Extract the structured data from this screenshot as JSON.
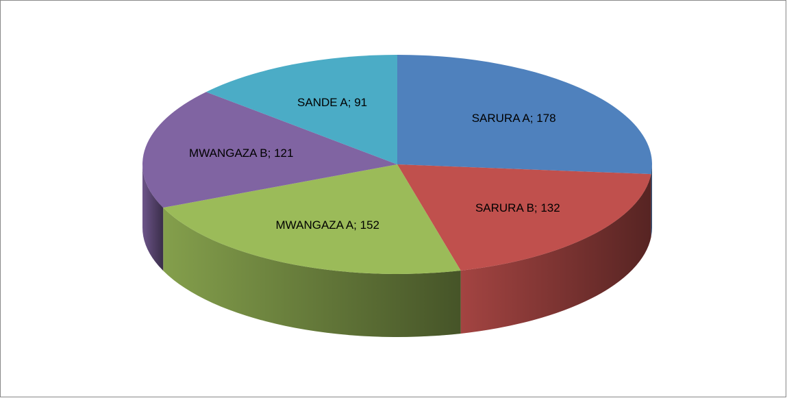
{
  "chart_data": {
    "type": "pie3d",
    "categories": [
      "SARURA A",
      "SARURA B",
      "MWANGAZA A",
      "MWANGAZA B",
      "SANDE A"
    ],
    "values": [
      178,
      132,
      152,
      121,
      91
    ],
    "value_labels": [
      "SARURA A; 178",
      "SARURA B; 132",
      "MWANGAZA A; 152",
      "MWANGAZA B; 121",
      "SANDE A; 91"
    ],
    "colors": [
      "#4f81bd",
      "#c0504d",
      "#9bbb59",
      "#8064a2",
      "#4bacc6"
    ]
  }
}
